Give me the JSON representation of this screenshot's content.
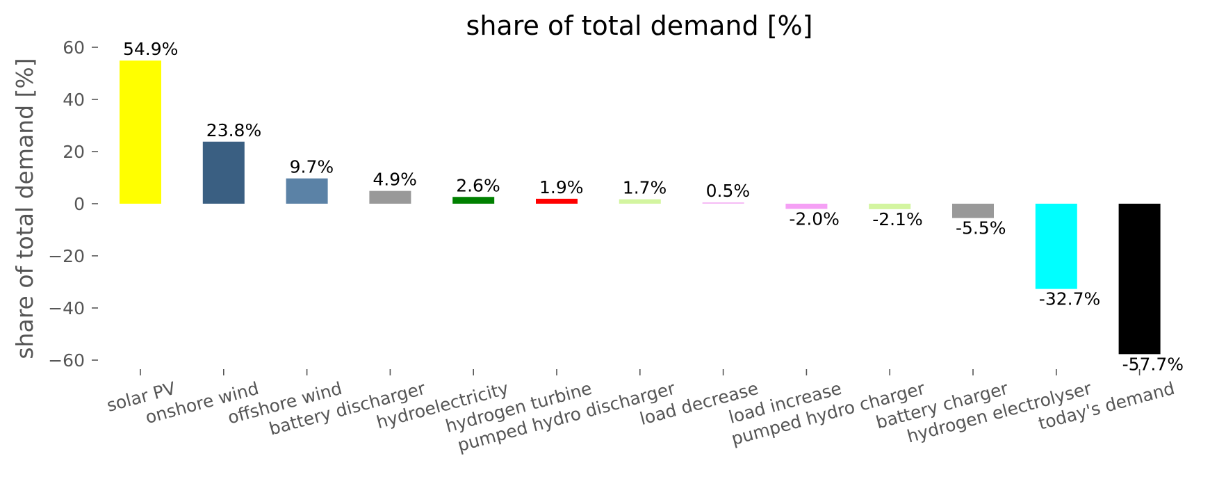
{
  "chart_data": {
    "type": "bar",
    "title": "share of total demand [%]",
    "xlabel": "",
    "ylabel": "share of total demand [%]",
    "ylim": [
      -65,
      63
    ],
    "yticks": [
      60,
      40,
      20,
      0,
      -20,
      -40,
      -60
    ],
    "ytick_labels": [
      "60",
      "40",
      "20",
      "0",
      "−20",
      "−40",
      "−60"
    ],
    "grid": false,
    "categories": [
      "solar PV",
      "onshore wind",
      "offshore wind",
      "battery discharger",
      "hydroelectricity",
      "hydrogen turbine",
      "pumped hydro discharger",
      "load decrease",
      "load increase",
      "pumped hydro charger",
      "battery charger",
      "hydrogen electrolyser",
      "today's demand"
    ],
    "values": [
      54.9,
      23.8,
      9.7,
      4.9,
      2.6,
      1.9,
      1.7,
      0.5,
      -2.0,
      -2.1,
      -5.5,
      -32.7,
      -57.7
    ],
    "data_labels": [
      "54.9%",
      "23.8%",
      "9.7%",
      "4.9%",
      "2.6%",
      "1.9%",
      "1.7%",
      "0.5%",
      "-2.0%",
      "-2.1%",
      "-5.5%",
      "-32.7%",
      "-57.7%"
    ],
    "colors": [
      "#ffff00",
      "#3a5f82",
      "#5b82a6",
      "#999999",
      "#008000",
      "#ff0000",
      "#d3f5a0",
      "#f5b8f5",
      "#f5a0f5",
      "#d3f5a0",
      "#999999",
      "#00ffff",
      "#000000"
    ]
  }
}
